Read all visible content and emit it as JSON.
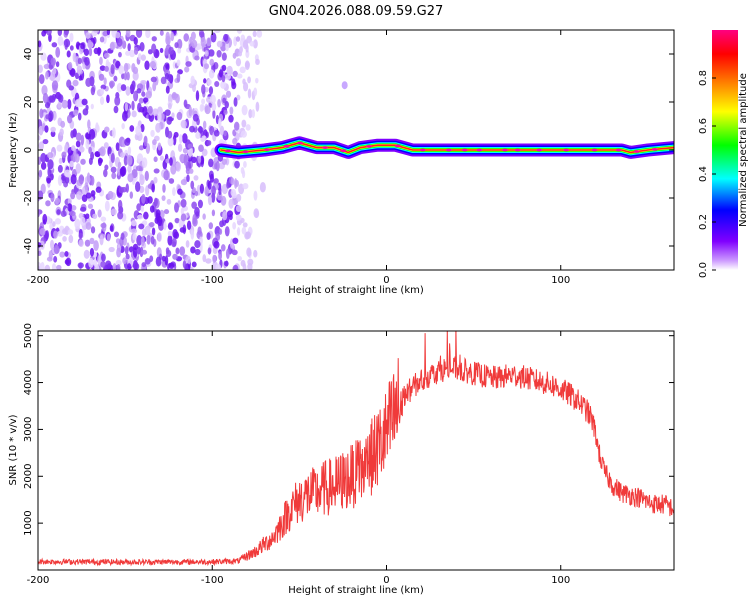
{
  "title": "GN04.2026.088.09.59.G27",
  "chart_data": [
    {
      "type": "heatmap",
      "xlabel": "Height of straight line (km)",
      "ylabel": "Frequency (Hz)",
      "xlim": [
        -200,
        165
      ],
      "ylim": [
        -50,
        50
      ],
      "xticks": [
        -200,
        -100,
        0,
        100
      ],
      "yticks": [
        -40,
        -20,
        0,
        20,
        40
      ],
      "colorbar": {
        "label": "Normalized spectral amplitude",
        "range": [
          0,
          1
        ],
        "ticks": [
          0.0,
          0.2,
          0.4,
          0.6,
          0.8
        ],
        "tick_labels": [
          "0.0",
          "0.2",
          "0.4",
          "0.6",
          "0.8"
        ],
        "colormap": [
          "#ffffff",
          "#7f00ff",
          "#0000ff",
          "#00ffff",
          "#00ff00",
          "#ffff00",
          "#ff8000",
          "#ff0000",
          "#ff0080"
        ]
      },
      "noise_region_x": [
        -200,
        -70
      ],
      "ridge": {
        "x_start": -95,
        "x_end": 165,
        "frequency_points": [
          [
            -95,
            0
          ],
          [
            -85,
            -1
          ],
          [
            -70,
            0
          ],
          [
            -60,
            1
          ],
          [
            -50,
            3
          ],
          [
            -40,
            1
          ],
          [
            -30,
            1
          ],
          [
            -22,
            -1
          ],
          [
            -15,
            1
          ],
          [
            -5,
            2
          ],
          [
            5,
            2
          ],
          [
            15,
            0
          ],
          [
            50,
            0
          ],
          [
            100,
            0
          ],
          [
            135,
            0
          ],
          [
            140,
            -1
          ],
          [
            150,
            0
          ],
          [
            165,
            1
          ]
        ]
      },
      "isolated_blob": [
        -24,
        27
      ]
    },
    {
      "type": "line",
      "xlabel": "Height of straight line (km)",
      "ylabel": "SNR (10 * v/v)",
      "xlim": [
        -200,
        165
      ],
      "ylim": [
        0,
        5100
      ],
      "xticks": [
        -200,
        -100,
        0,
        100
      ],
      "yticks": [
        1000,
        2000,
        3000,
        4000,
        5000
      ],
      "color": "#f03a3a",
      "series": [
        {
          "x": [
            -200,
            -150,
            -100,
            -85,
            -80,
            -75,
            -70,
            -65,
            -60,
            -55,
            -50,
            -45,
            -40,
            -35,
            -30,
            -25,
            -20,
            -15,
            -10,
            -5,
            0,
            5,
            10,
            15,
            20,
            25,
            30,
            35,
            40,
            45,
            50,
            55,
            60,
            65,
            70,
            75,
            80,
            85,
            90,
            95,
            100,
            105,
            110,
            115,
            118,
            120,
            122,
            125,
            130,
            135,
            140,
            145,
            150,
            155,
            160,
            165
          ],
          "y": [
            180,
            170,
            175,
            190,
            300,
            400,
            550,
            700,
            1000,
            1300,
            1500,
            1600,
            1650,
            1750,
            1800,
            1900,
            2000,
            2100,
            2300,
            2600,
            2900,
            3300,
            3700,
            3900,
            4050,
            4150,
            4250,
            4300,
            4300,
            4250,
            4200,
            4150,
            4100,
            4100,
            4150,
            4150,
            4100,
            4050,
            4000,
            3950,
            3850,
            3750,
            3600,
            3400,
            3200,
            2900,
            2500,
            2100,
            1800,
            1650,
            1600,
            1550,
            1450,
            1400,
            1400,
            1300
          ]
        }
      ]
    }
  ]
}
